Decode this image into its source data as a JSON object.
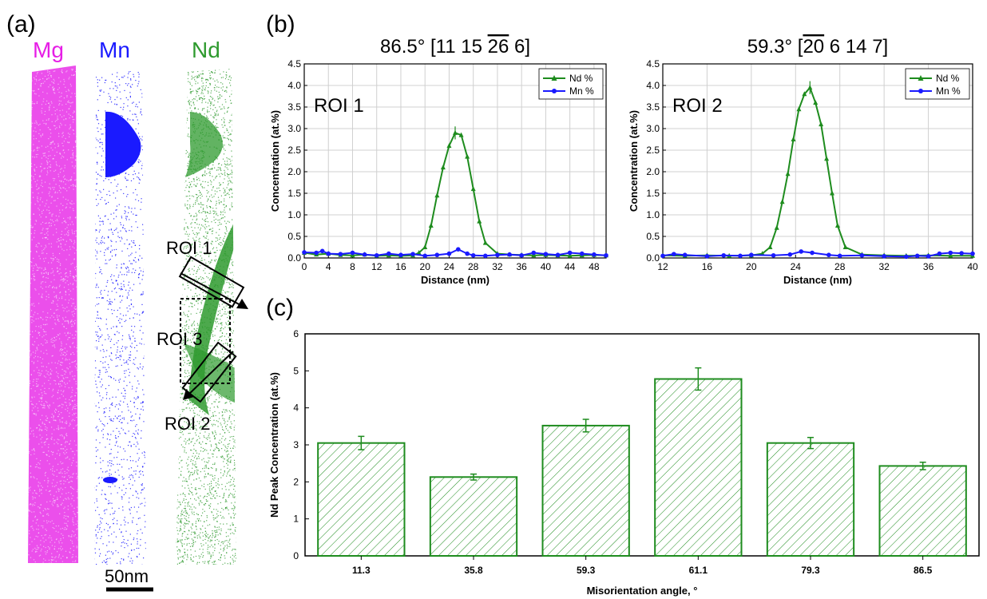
{
  "panel_a": {
    "label": "(a)",
    "elements": [
      {
        "name": "Mg",
        "color": "#e61ee6"
      },
      {
        "name": "Mn",
        "color": "#1a1aff"
      },
      {
        "name": "Nd",
        "color": "#2e9a2e"
      }
    ],
    "roi_labels": [
      "ROI 1",
      "ROI 3",
      "ROI 2"
    ],
    "scale_bar": "50nm"
  },
  "panel_b": {
    "label": "(b)"
  },
  "panel_c": {
    "label": "(c)"
  },
  "chart_data": [
    {
      "type": "line",
      "title": "86.5°  [11 15 26 6]",
      "title_parts": {
        "prefix": "86.5°  [11 15 ",
        "overlined": "26",
        "suffix": " 6]"
      },
      "roi_label": "ROI 1",
      "xlabel": "Distance (nm)",
      "ylabel": "Concentration (at.%)",
      "xlim": [
        0,
        50
      ],
      "ylim": [
        0,
        4.5
      ],
      "xticks": [
        0,
        4,
        8,
        12,
        16,
        20,
        24,
        28,
        32,
        36,
        40,
        44,
        48
      ],
      "yticks": [
        0,
        0.5,
        1.0,
        1.5,
        2.0,
        2.5,
        3.0,
        3.5,
        4.0,
        4.5
      ],
      "ytick_labels": [
        "0.0",
        "0.5",
        "1.0",
        "1.5",
        "2.0",
        "2.5",
        "3.0",
        "3.5",
        "4.0",
        "4.5"
      ],
      "grid": true,
      "legend": "top-right",
      "series": [
        {
          "name": "Nd %",
          "color": "#1e8c1e",
          "marker": "triangle",
          "x": [
            0,
            2,
            4,
            6,
            8,
            10,
            12,
            14,
            16,
            18,
            19,
            20,
            21,
            22,
            23,
            24,
            25,
            26,
            27,
            28,
            29,
            30,
            32,
            34,
            36,
            38,
            40,
            42,
            44,
            46,
            48,
            50
          ],
          "y": [
            0.12,
            0.08,
            0.1,
            0.07,
            0.06,
            0.08,
            0.05,
            0.06,
            0.05,
            0.06,
            0.12,
            0.25,
            0.75,
            1.45,
            2.1,
            2.6,
            2.9,
            2.85,
            2.35,
            1.6,
            0.85,
            0.35,
            0.1,
            0.08,
            0.07,
            0.06,
            0.07,
            0.06,
            0.05,
            0.06,
            0.07,
            0.06
          ]
        },
        {
          "name": "Mn %",
          "color": "#1a1aff",
          "marker": "circle",
          "x": [
            0,
            2,
            3,
            4,
            6,
            8,
            10,
            12,
            14,
            16,
            18,
            20,
            22,
            24,
            25.5,
            27,
            28,
            30,
            32,
            34,
            36,
            38,
            40,
            42,
            44,
            46,
            48,
            50
          ],
          "y": [
            0.13,
            0.12,
            0.16,
            0.1,
            0.09,
            0.12,
            0.08,
            0.06,
            0.1,
            0.07,
            0.09,
            0.05,
            0.07,
            0.1,
            0.2,
            0.1,
            0.06,
            0.05,
            0.07,
            0.08,
            0.06,
            0.12,
            0.09,
            0.07,
            0.12,
            0.1,
            0.08,
            0.06
          ]
        }
      ]
    },
    {
      "type": "line",
      "title": "59.3°  [20 6 14 7]",
      "title_parts": {
        "prefix": "59.3°  [",
        "overlined": "20",
        "suffix": " 6 14 7]"
      },
      "roi_label": "ROI 2",
      "xlabel": "Distance (nm)",
      "ylabel": "Concentration (at.%)",
      "xlim": [
        12,
        40
      ],
      "ylim": [
        0,
        4.5
      ],
      "xticks": [
        12,
        16,
        20,
        24,
        28,
        32,
        36,
        40
      ],
      "yticks": [
        0,
        0.5,
        1.0,
        1.5,
        2.0,
        2.5,
        3.0,
        3.5,
        4.0,
        4.5
      ],
      "ytick_labels": [
        "0.0",
        "0.5",
        "1.0",
        "1.5",
        "2.0",
        "2.5",
        "3.0",
        "3.5",
        "4.0",
        "4.5"
      ],
      "grid": true,
      "legend": "top-right",
      "series": [
        {
          "name": "Nd %",
          "color": "#1e8c1e",
          "marker": "triangle",
          "x": [
            12,
            14,
            16,
            18,
            20,
            21,
            21.7,
            22.3,
            22.8,
            23.3,
            23.8,
            24.3,
            24.8,
            25.3,
            25.8,
            26.3,
            26.8,
            27.3,
            27.8,
            28.5,
            30,
            32,
            34,
            36,
            38,
            40
          ],
          "y": [
            0.06,
            0.05,
            0.06,
            0.05,
            0.06,
            0.1,
            0.25,
            0.7,
            1.3,
            1.95,
            2.75,
            3.45,
            3.8,
            3.95,
            3.6,
            3.1,
            2.3,
            1.5,
            0.75,
            0.25,
            0.08,
            0.06,
            0.05,
            0.06,
            0.05,
            0.05
          ]
        },
        {
          "name": "Mn %",
          "color": "#1a1aff",
          "marker": "circle",
          "x": [
            12,
            13,
            14,
            16,
            17.5,
            19,
            20,
            22,
            23.5,
            24.5,
            25.5,
            27,
            28,
            30,
            32,
            34,
            35,
            36,
            37,
            38,
            39,
            40
          ],
          "y": [
            0.05,
            0.09,
            0.07,
            0.04,
            0.06,
            0.05,
            0.07,
            0.06,
            0.08,
            0.15,
            0.12,
            0.07,
            0.05,
            0.06,
            0.04,
            0.03,
            0.05,
            0.04,
            0.1,
            0.12,
            0.11,
            0.1
          ]
        }
      ]
    },
    {
      "type": "bar",
      "categories": [
        "11.3",
        "35.8",
        "59.3",
        "61.1",
        "79.3",
        "86.5"
      ],
      "values": [
        3.05,
        2.13,
        3.52,
        4.78,
        3.05,
        2.43
      ],
      "errors": [
        0.18,
        0.08,
        0.17,
        0.3,
        0.15,
        0.1
      ],
      "xlabel": "Misorientation angle, °",
      "ylabel": "Nd Peak Concentration (at.%)",
      "ylim": [
        0,
        6
      ],
      "yticks": [
        0,
        1,
        2,
        3,
        4,
        5,
        6
      ],
      "color": "#1e8c1e",
      "fill": "hatched"
    }
  ]
}
